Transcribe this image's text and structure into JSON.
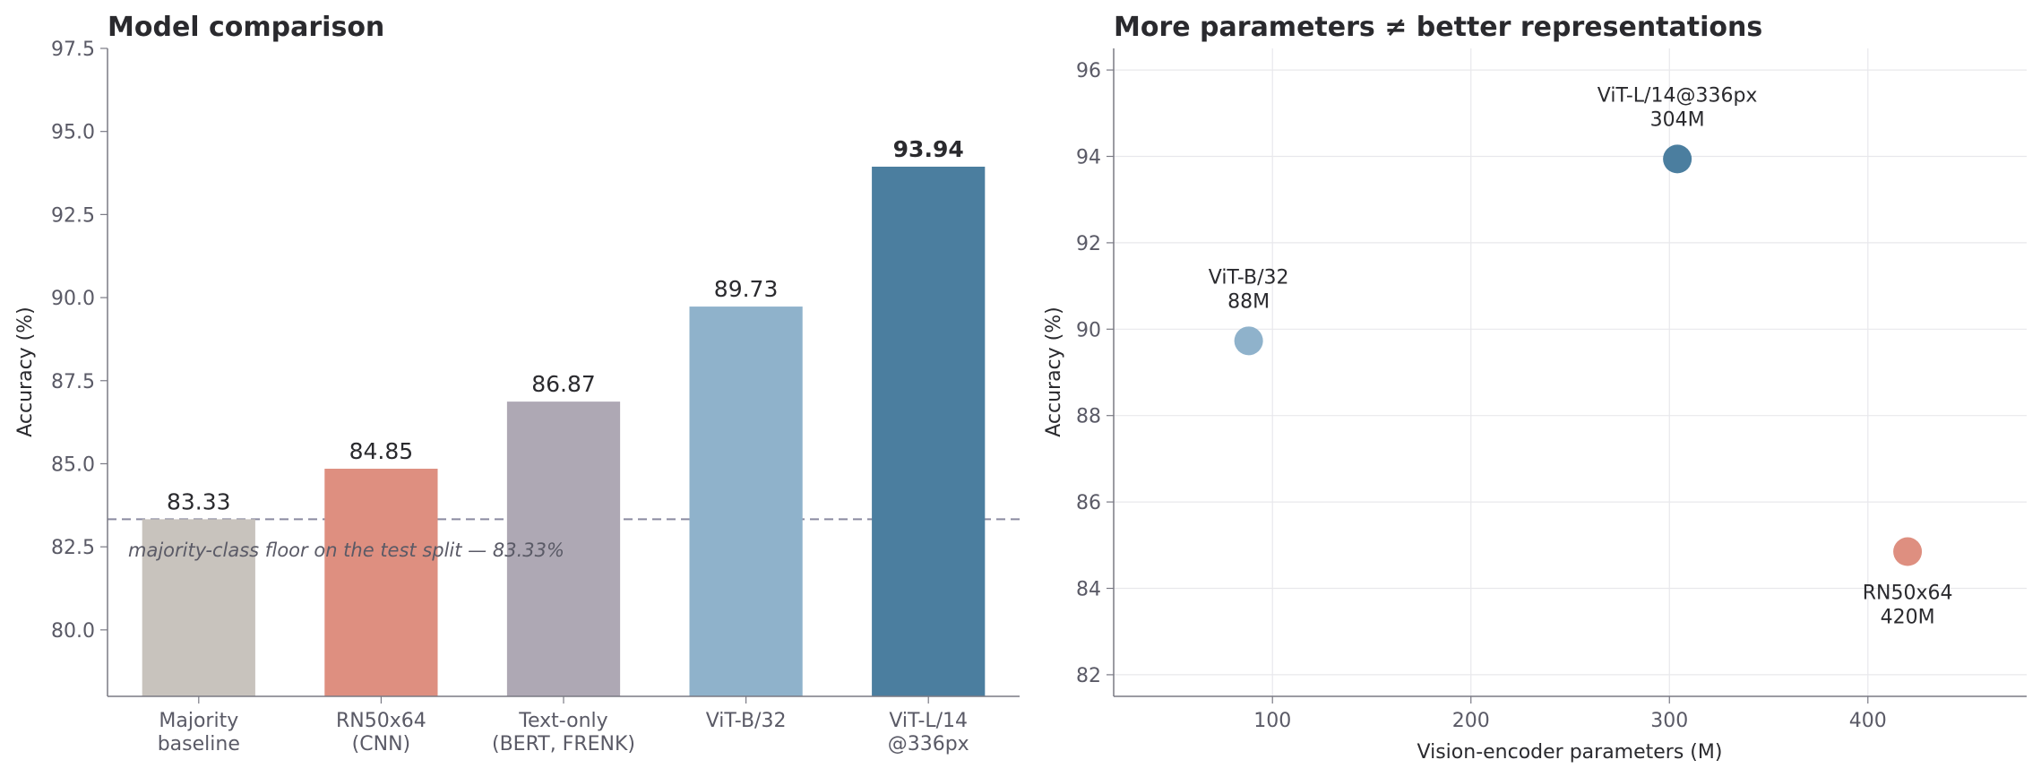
{
  "chart_data": [
    {
      "type": "bar",
      "title": "Model comparison",
      "ylabel": "Accuracy (%)",
      "xlabel": "",
      "ylim": [
        78.0,
        97.5
      ],
      "yticks": [
        "80.0",
        "82.5",
        "85.0",
        "87.5",
        "90.0",
        "92.5",
        "95.0",
        "97.5"
      ],
      "categories": [
        [
          "Majority",
          "baseline"
        ],
        [
          "RN50x64",
          "(CNN)"
        ],
        [
          "Text-only",
          "(BERT, FRENK)"
        ],
        [
          "ViT-B/32"
        ],
        [
          "ViT-L/14",
          "@336px"
        ]
      ],
      "values": [
        83.33,
        84.85,
        86.87,
        89.73,
        93.94
      ],
      "value_labels": [
        "83.33",
        "84.85",
        "86.87",
        "89.73",
        "93.94"
      ],
      "highlight_index": 4,
      "colors": [
        "#c8c3bd",
        "#de8f80",
        "#aea8b4",
        "#8fb2cb",
        "#4b7e9f"
      ],
      "reference_line": {
        "value": 83.33,
        "label": "majority-class floor on the test split — 83.33%",
        "color": "#8a8aa0"
      },
      "grid": false
    },
    {
      "type": "scatter",
      "title": "More parameters ≠ better representations",
      "xlabel": "Vision-encoder parameters (M)",
      "ylabel": "Accuracy (%)",
      "xlim": [
        20,
        480
      ],
      "ylim": [
        81.5,
        96.5
      ],
      "xticks": [
        "100",
        "200",
        "300",
        "400"
      ],
      "yticks": [
        "82",
        "84",
        "86",
        "88",
        "90",
        "92",
        "94",
        "96"
      ],
      "grid": true,
      "points": [
        {
          "x": 88,
          "y": 89.73,
          "labels": [
            "ViT-B/32",
            "88M"
          ],
          "label_position": "above",
          "color": "#8fb2cb"
        },
        {
          "x": 304,
          "y": 93.94,
          "labels": [
            "ViT-L/14@336px",
            "304M"
          ],
          "label_position": "above",
          "color": "#4b7e9f"
        },
        {
          "x": 420,
          "y": 84.85,
          "labels": [
            "RN50x64",
            "420M"
          ],
          "label_position": "below",
          "color": "#de8f80"
        }
      ]
    }
  ]
}
